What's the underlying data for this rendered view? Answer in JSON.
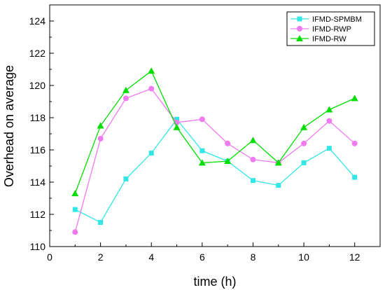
{
  "chart_data": {
    "type": "line",
    "xlabel": "time (h)",
    "ylabel": "Overhead on average",
    "xlim": [
      0,
      13
    ],
    "ylim": [
      110,
      125
    ],
    "x_ticks": [
      0,
      2,
      4,
      6,
      8,
      10,
      12
    ],
    "y_ticks": [
      110,
      112,
      114,
      116,
      118,
      120,
      122,
      124
    ],
    "legend_position": "top-right",
    "grid": false,
    "series": [
      {
        "name": "IFMD-SPMBM",
        "color": "#33e6e6",
        "marker": "square",
        "x": [
          1,
          2,
          3,
          4,
          5,
          6,
          7,
          8,
          9,
          10,
          11,
          12
        ],
        "y": [
          112.3,
          111.5,
          114.2,
          115.8,
          117.9,
          115.95,
          115.3,
          114.1,
          113.8,
          115.2,
          116.1,
          114.3
        ]
      },
      {
        "name": "IFMD-RWP",
        "color": "#f07af0",
        "marker": "circle",
        "x": [
          1,
          2,
          3,
          4,
          5,
          6,
          7,
          8,
          9,
          10,
          11,
          12
        ],
        "y": [
          110.9,
          116.7,
          119.2,
          119.8,
          117.7,
          117.9,
          116.4,
          115.4,
          115.2,
          116.4,
          117.8,
          116.4
        ]
      },
      {
        "name": "IFMD-RW",
        "color": "#00dd00",
        "marker": "triangle",
        "x": [
          1,
          2,
          3,
          4,
          5,
          6,
          7,
          8,
          9,
          10,
          11,
          12
        ],
        "y": [
          113.3,
          117.5,
          119.7,
          120.9,
          117.4,
          115.2,
          115.3,
          116.6,
          115.2,
          117.4,
          118.5,
          119.2
        ]
      }
    ]
  }
}
